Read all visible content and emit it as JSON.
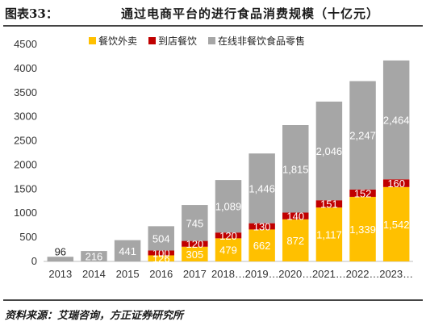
{
  "header": {
    "figure_label": "图表33：",
    "title": "通过电商平台的进行食品消费规模（十亿元）"
  },
  "source": "资料来源：艾瑞咨询，方正证券研究所",
  "chart_data": {
    "type": "bar",
    "stacked": true,
    "title": "通过电商平台的进行食品消费规模（十亿元）",
    "xlabel": "",
    "ylabel": "",
    "ylim": [
      0,
      4500
    ],
    "yticks": [
      0,
      500,
      1000,
      1500,
      2000,
      2500,
      3000,
      3500,
      4000,
      4500
    ],
    "categories": [
      "2013",
      "2014",
      "2015",
      "2016",
      "2017",
      "2018…",
      "2019…",
      "2020…",
      "2021…",
      "2022…",
      "2023…"
    ],
    "legend_position": "top",
    "grid": false,
    "series": [
      {
        "name": "餐饮外卖",
        "color": "#FFC000",
        "values": [
          0,
          0,
          0,
          126,
          305,
          479,
          662,
          872,
          1117,
          1339,
          1542
        ],
        "labels": [
          "",
          "",
          "",
          "126",
          "305",
          "479",
          "662",
          "872",
          "1,117",
          "1,339",
          "1,542"
        ]
      },
      {
        "name": "到店餐饮",
        "color": "#C00000",
        "values": [
          0,
          0,
          0,
          100,
          120,
          120,
          130,
          140,
          151,
          152,
          160
        ],
        "labels": [
          "",
          "",
          "",
          "100",
          "120",
          "120",
          "130",
          "140",
          "151",
          "152",
          "160"
        ]
      },
      {
        "name": "在线非餐饮食品零售",
        "color": "#A6A6A6",
        "values": [
          96,
          216,
          441,
          504,
          745,
          1089,
          1446,
          1815,
          2046,
          2247,
          2464
        ],
        "labels": [
          "96",
          "216",
          "441",
          "504",
          "745",
          "1,089",
          "1,446",
          "1,815",
          "2,046",
          "2,247",
          "2,464"
        ]
      }
    ]
  }
}
